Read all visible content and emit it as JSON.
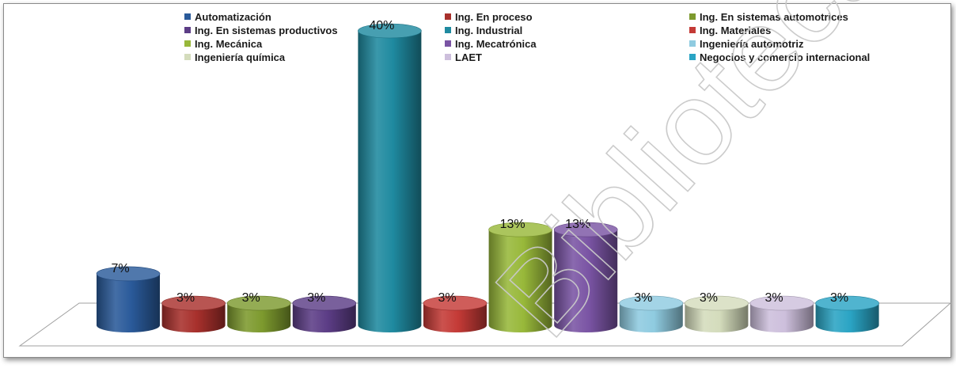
{
  "chart_data": {
    "type": "bar",
    "title": "",
    "xlabel": "",
    "ylabel": "",
    "categories": [
      "Automatización",
      "Ing. En proceso",
      "Ing. En sistemas automotrices",
      "Ing. En sistemas productivos",
      "Ing. Industrial",
      "Ing. Materiales",
      "Ing. Mecánica",
      "Ing. Mecatrónica",
      "Ingeniería automotriz",
      "Ingeniería química",
      "LAET",
      "Negocios y comercio internacional"
    ],
    "values": [
      7,
      3,
      3,
      3,
      40,
      3,
      13,
      13,
      3,
      3,
      3,
      3
    ],
    "labels": [
      "7%",
      "3%",
      "3%",
      "3%",
      "40%",
      "3%",
      "13%",
      "13%",
      "3%",
      "3%",
      "3%",
      "3%"
    ],
    "unit": "%",
    "colors": [
      "#2a5a9a",
      "#a8302c",
      "#7d9a2e",
      "#5c3d86",
      "#1f8aa0",
      "#c43a36",
      "#98b83a",
      "#7a54a4",
      "#8fcbe0",
      "#d4dcbc",
      "#cdbfdc",
      "#2aa4c4"
    ],
    "style": "3d-cylinder",
    "legend_position": "top",
    "ylim": [
      0,
      40
    ]
  },
  "legend": {
    "items": [
      "Automatización",
      "Ing. En proceso",
      "Ing. En sistemas automotrices",
      "Ing. En sistemas productivos",
      "Ing. Industrial",
      "Ing. Materiales",
      "Ing. Mecánica",
      "Ing. Mecatrónica",
      "Ingeniería automotriz",
      "Ingeniería química",
      "LAET",
      "Negocios y comercio internacional"
    ]
  },
  "watermark": {
    "text": "Bibliotecas de la"
  }
}
